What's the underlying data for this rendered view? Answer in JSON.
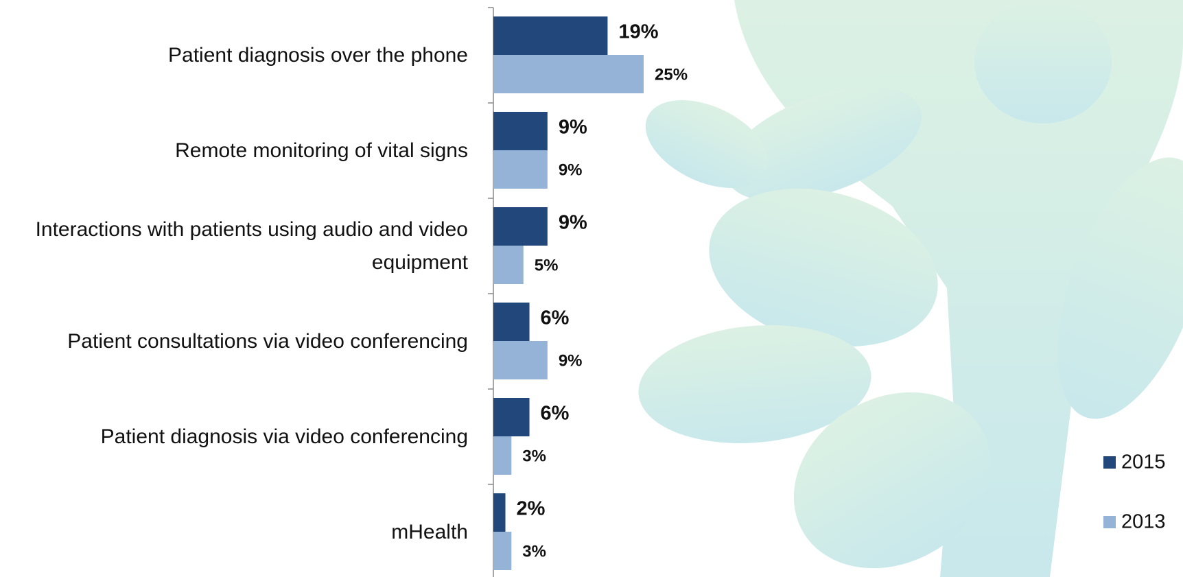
{
  "chart_data": {
    "type": "bar",
    "orientation": "horizontal",
    "categories": [
      "Patient diagnosis over the phone",
      "Remote monitoring of vital signs",
      "Interactions with patients using audio and video equipment",
      "Patient consultations via video conferencing",
      "Patient diagnosis via video conferencing",
      "mHealth"
    ],
    "series": [
      {
        "name": "2015",
        "color": "#22477a",
        "values": [
          19,
          9,
          9,
          6,
          6,
          2
        ],
        "value_labels": [
          "19%",
          "9%",
          "9%",
          "6%",
          "6%",
          "2%"
        ]
      },
      {
        "name": "2013",
        "color": "#95b3d7",
        "values": [
          25,
          9,
          5,
          9,
          3,
          3
        ],
        "value_labels": [
          "25%",
          "9%",
          "5%",
          "9%",
          "3%",
          "3%"
        ]
      }
    ],
    "xlim": [
      0,
      100
    ],
    "legend": "right"
  }
}
